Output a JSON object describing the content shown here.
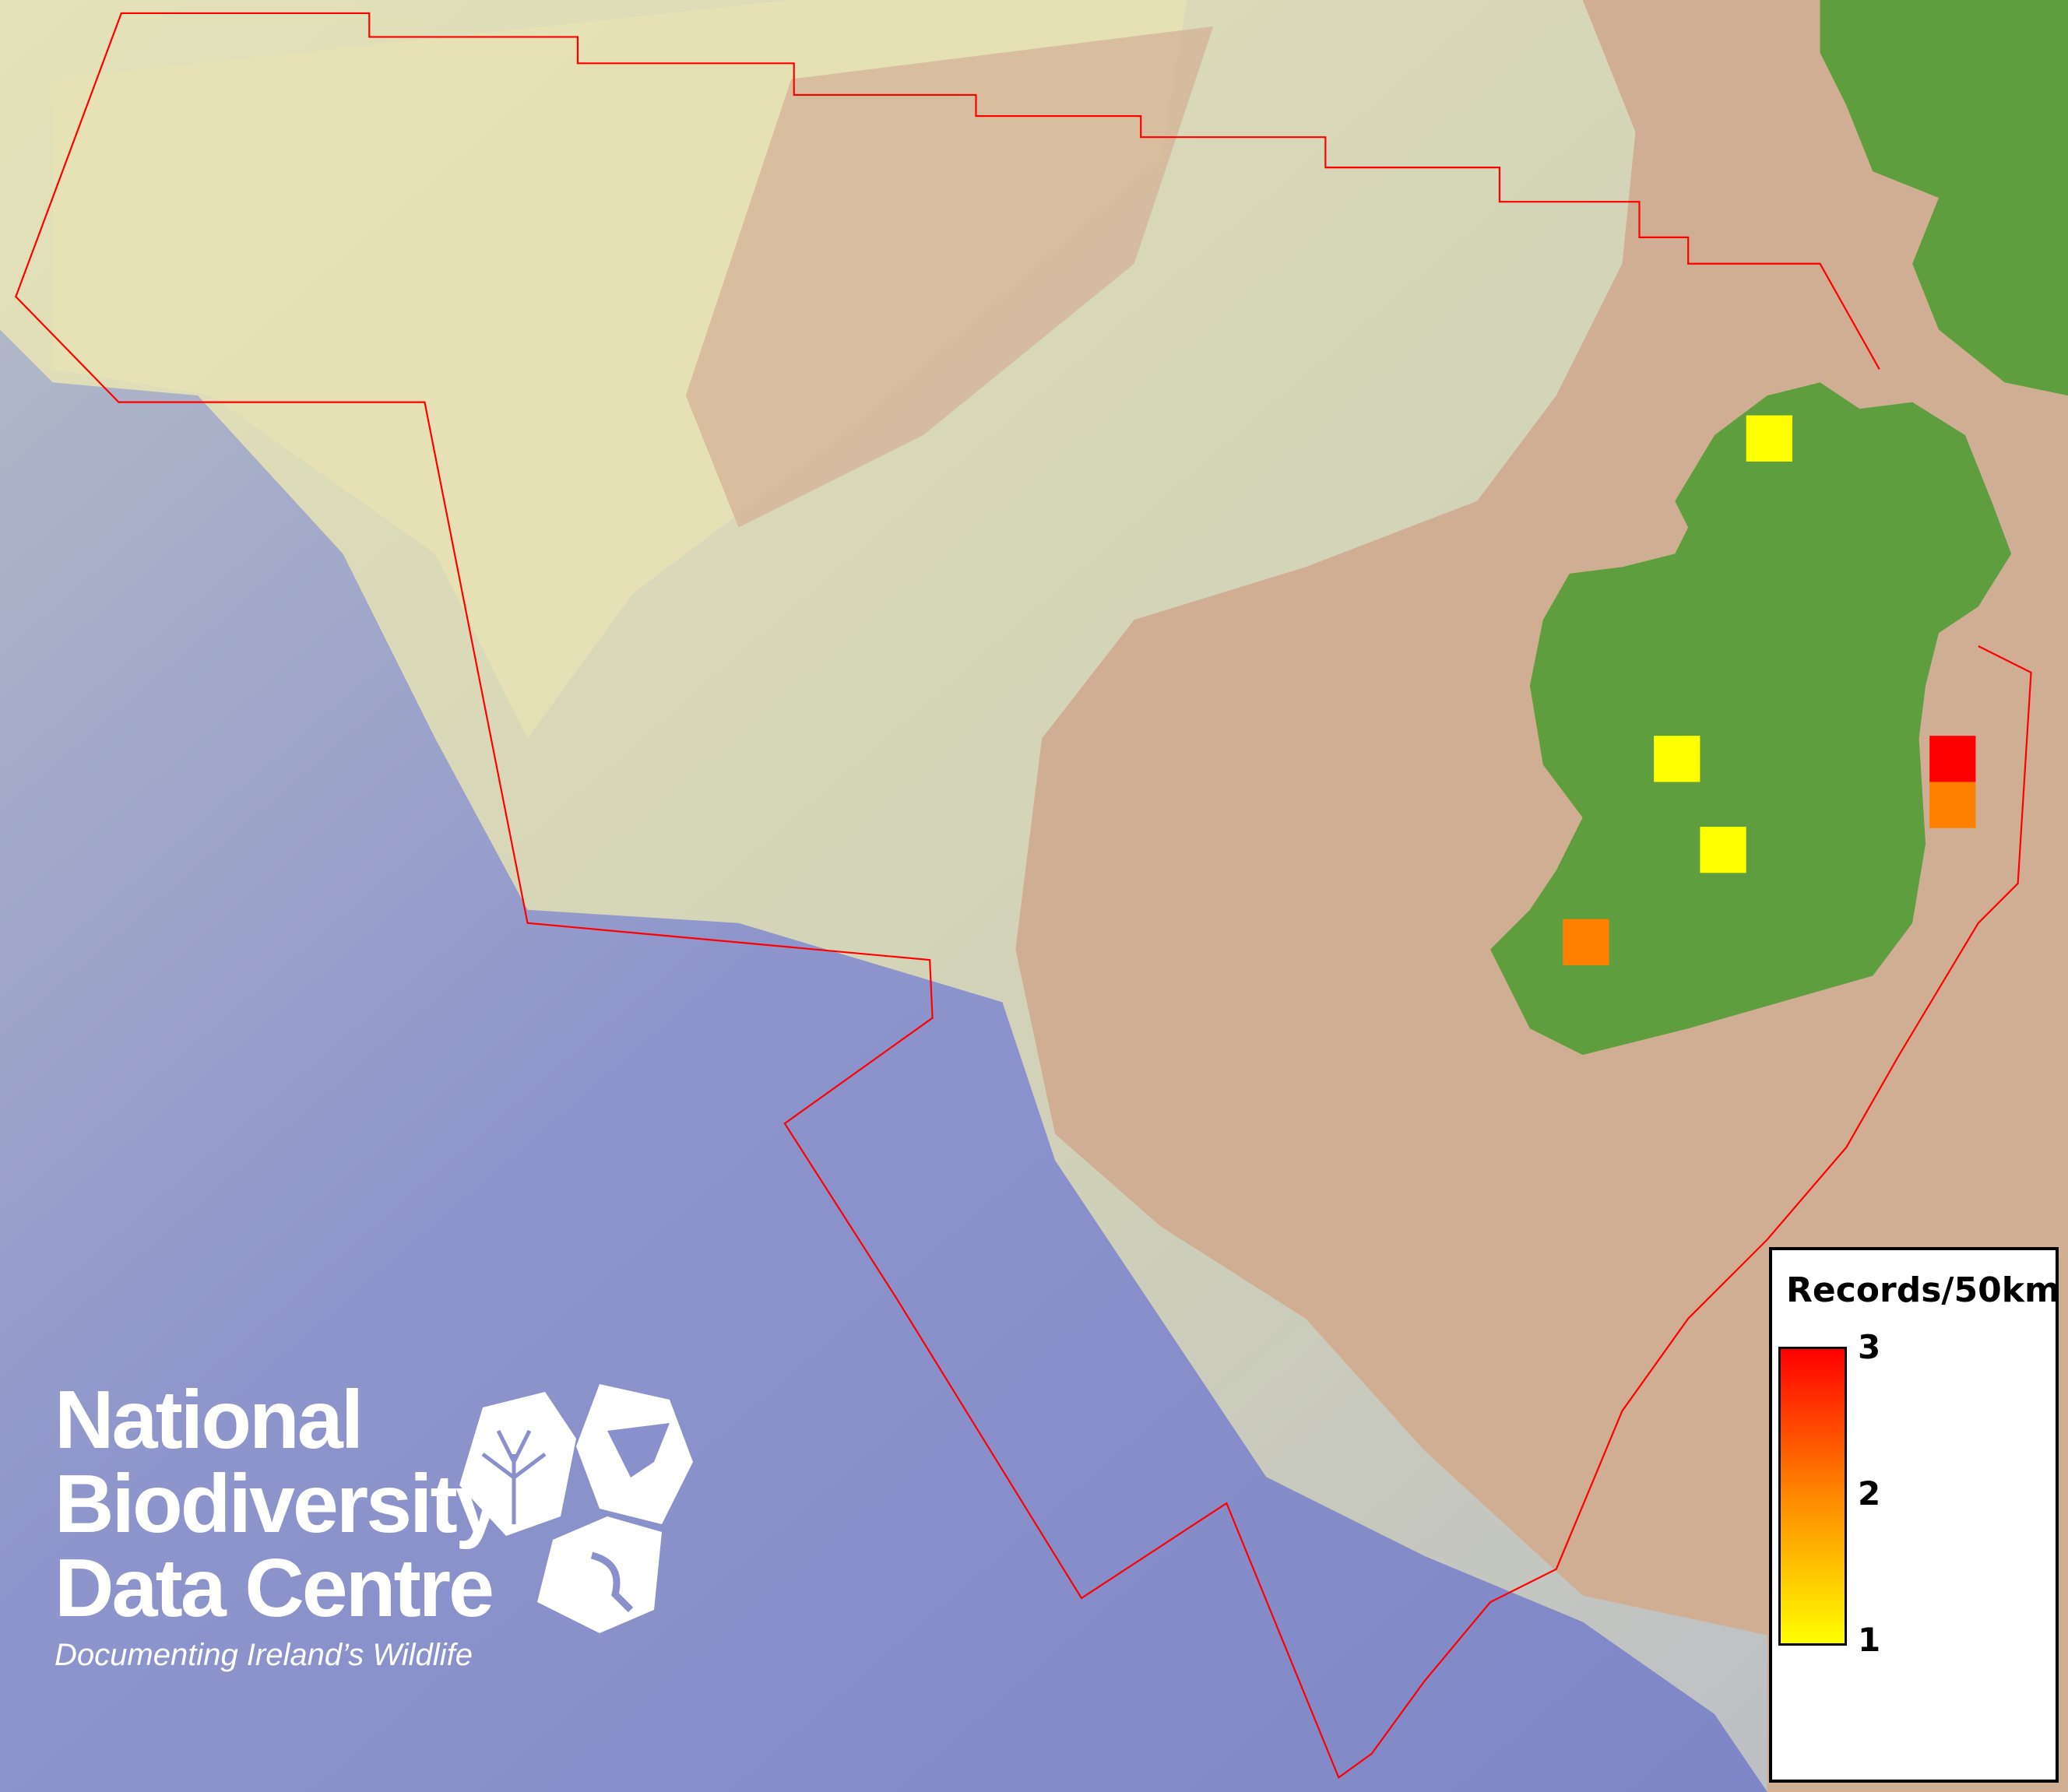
{
  "map": {
    "colors": {
      "deep_ocean": "#7f86c8",
      "shelf": "#c9c9b0",
      "shallow": "#e6e2b0",
      "land_sea_floor": "#cfae93",
      "land": "#5f9e3f",
      "boundary": "#ff0000"
    },
    "records": [
      {
        "count": 1,
        "color": "#ffff00"
      },
      {
        "count": 1,
        "color": "#ffff00"
      },
      {
        "count": 1,
        "color": "#ffff00"
      },
      {
        "count": 3,
        "color": "#ff0000"
      },
      {
        "count": 2,
        "color": "#ff8000"
      },
      {
        "count": 2,
        "color": "#ff8000"
      }
    ]
  },
  "legend": {
    "title": "Records/50km",
    "max_label": "3",
    "mid_label": "2",
    "min_label": "1",
    "ramp_colors": [
      "#ffff00",
      "#ff8800",
      "#ff0000"
    ]
  },
  "logo": {
    "line1": "National",
    "line2": "Biodiversity",
    "line3": "Data Centre",
    "tagline": "Documenting Ireland’s Wildlife",
    "icons": [
      "plant-icon",
      "butterfly-icon",
      "seahorse-icon"
    ]
  }
}
